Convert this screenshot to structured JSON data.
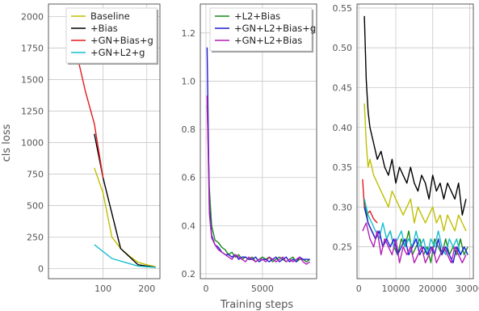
{
  "figure": {
    "xlabel": "Training steps",
    "ylabel": "cls loss"
  },
  "chart_data": [
    {
      "type": "line",
      "xlim": [
        -25,
        230
      ],
      "ylim": [
        -80,
        2100
      ],
      "xticks": [
        {
          "v": 100,
          "label": "100"
        },
        {
          "v": 200,
          "label": "200"
        }
      ],
      "yticks": [
        {
          "v": 0,
          "label": "0"
        },
        {
          "v": 250,
          "label": "250"
        },
        {
          "v": 500,
          "label": "500"
        },
        {
          "v": 750,
          "label": "750"
        },
        {
          "v": 1000,
          "label": "1000"
        },
        {
          "v": 1250,
          "label": "1250"
        },
        {
          "v": 1500,
          "label": "1500"
        },
        {
          "v": 1750,
          "label": "1750"
        },
        {
          "v": 2000,
          "label": "2000"
        }
      ],
      "legend": "top-right",
      "grid": true,
      "series": [
        {
          "name": "Baseline",
          "color": "#bfbf00",
          "x": [
            80,
            100,
            120,
            140,
            160,
            180,
            200,
            220
          ],
          "y": [
            800,
            600,
            250,
            160,
            100,
            50,
            30,
            15
          ]
        },
        {
          "name": "+Bias",
          "color": "#000000",
          "x": [
            80,
            100,
            140,
            180,
            220
          ],
          "y": [
            1070,
            720,
            160,
            30,
            10
          ]
        },
        {
          "name": "+GN+Bias+g",
          "color": "#e31a1c",
          "x": [
            20,
            40,
            60,
            80,
            100
          ],
          "y": [
            2020,
            1700,
            1400,
            1150,
            720
          ]
        },
        {
          "name": "+GN+L2+g",
          "color": "#17becf",
          "x": [
            80,
            120,
            160,
            180,
            220
          ],
          "y": [
            190,
            80,
            40,
            20,
            10
          ]
        }
      ]
    },
    {
      "type": "line",
      "xlim": [
        -500,
        9800
      ],
      "ylim": [
        0.18,
        1.32
      ],
      "xticks": [
        {
          "v": 0,
          "label": "0"
        },
        {
          "v": 5000,
          "label": "5000"
        }
      ],
      "yticks": [
        {
          "v": 0.2,
          "label": "0.2"
        },
        {
          "v": 0.4,
          "label": "0.4"
        },
        {
          "v": 0.6,
          "label": "0.6"
        },
        {
          "v": 0.8,
          "label": "0.8"
        },
        {
          "v": 1.0,
          "label": "1.0"
        },
        {
          "v": 1.2,
          "label": "1.2"
        }
      ],
      "legend": "top-right",
      "grid": true,
      "series": [
        {
          "name": "+L2+Bias",
          "color": "#1a8c1a",
          "x": [
            100,
            300,
            500,
            800,
            1100,
            1400,
            1700,
            2000,
            2300,
            2600,
            2900,
            3200,
            3500,
            3800,
            4100,
            4400,
            4700,
            5000,
            5300,
            5600,
            5900,
            6200,
            6500,
            6800,
            7100,
            7400,
            7700,
            8000,
            8300,
            8600,
            8900,
            9200
          ],
          "y": [
            0.9,
            0.55,
            0.4,
            0.34,
            0.33,
            0.31,
            0.3,
            0.28,
            0.29,
            0.27,
            0.28,
            0.26,
            0.27,
            0.26,
            0.27,
            0.25,
            0.26,
            0.27,
            0.26,
            0.27,
            0.25,
            0.26,
            0.27,
            0.26,
            0.25,
            0.26,
            0.27,
            0.25,
            0.26,
            0.26,
            0.25,
            0.26
          ]
        },
        {
          "name": "+GN+L2+Bias+g",
          "color": "#1f1fd6",
          "x": [
            100,
            300,
            500,
            800,
            1100,
            1400,
            1700,
            2000,
            2300,
            2600,
            2900,
            3200,
            3500,
            3800,
            4100,
            4400,
            4700,
            5000,
            5300,
            5600,
            5900,
            6200,
            6500,
            6800,
            7100,
            7400,
            7700,
            8000,
            8300,
            8600,
            8900,
            9200
          ],
          "y": [
            1.14,
            0.48,
            0.36,
            0.32,
            0.31,
            0.29,
            0.28,
            0.28,
            0.27,
            0.28,
            0.26,
            0.27,
            0.27,
            0.26,
            0.26,
            0.27,
            0.25,
            0.26,
            0.26,
            0.25,
            0.26,
            0.27,
            0.25,
            0.26,
            0.27,
            0.25,
            0.26,
            0.25,
            0.27,
            0.26,
            0.26,
            0.26
          ]
        },
        {
          "name": "+GN+L2+Bias",
          "color": "#b41fb4",
          "x": [
            100,
            300,
            500,
            800,
            1100,
            1400,
            1700,
            2000,
            2300,
            2600,
            2900,
            3200,
            3500,
            3800,
            4100,
            4400,
            4700,
            5000,
            5300,
            5600,
            5900,
            6200,
            6500,
            6800,
            7100,
            7400,
            7700,
            8000,
            8300,
            8600,
            8900,
            9200
          ],
          "y": [
            0.94,
            0.45,
            0.35,
            0.32,
            0.3,
            0.29,
            0.28,
            0.27,
            0.26,
            0.28,
            0.27,
            0.26,
            0.25,
            0.27,
            0.26,
            0.25,
            0.26,
            0.26,
            0.25,
            0.27,
            0.26,
            0.25,
            0.26,
            0.27,
            0.25,
            0.26,
            0.25,
            0.26,
            0.27,
            0.25,
            0.24,
            0.25
          ]
        }
      ]
    },
    {
      "type": "line",
      "xlim": [
        -500,
        31000
      ],
      "ylim": [
        0.21,
        0.555
      ],
      "xticks": [
        {
          "v": 0,
          "label": "0"
        },
        {
          "v": 10000,
          "label": "10000"
        },
        {
          "v": 20000,
          "label": "20000"
        },
        {
          "v": 30000,
          "label": "30000"
        }
      ],
      "yticks": [
        {
          "v": 0.25,
          "label": "0.25"
        },
        {
          "v": 0.3,
          "label": "0.30"
        },
        {
          "v": 0.35,
          "label": "0.35"
        },
        {
          "v": 0.4,
          "label": "0.40"
        },
        {
          "v": 0.45,
          "label": "0.45"
        },
        {
          "v": 0.5,
          "label": "0.50"
        },
        {
          "v": 0.55,
          "label": "0.55"
        }
      ],
      "grid": true,
      "series": [
        {
          "color": "#000000",
          "x": [
            1500,
            2000,
            2500,
            3000,
            4000,
            5000,
            6000,
            7000,
            8000,
            9000,
            10000,
            11000,
            12000,
            13000,
            14000,
            15000,
            16000,
            17000,
            18000,
            19000,
            20000,
            21000,
            22000,
            23000,
            24000,
            25000,
            26000,
            27000,
            28000,
            29000
          ],
          "y": [
            0.54,
            0.46,
            0.42,
            0.4,
            0.38,
            0.36,
            0.37,
            0.35,
            0.34,
            0.36,
            0.33,
            0.35,
            0.34,
            0.33,
            0.35,
            0.33,
            0.32,
            0.34,
            0.33,
            0.31,
            0.34,
            0.32,
            0.33,
            0.31,
            0.33,
            0.32,
            0.31,
            0.33,
            0.29,
            0.31
          ]
        },
        {
          "color": "#bfbf00",
          "x": [
            1500,
            2000,
            2500,
            3000,
            4000,
            5000,
            6000,
            7000,
            8000,
            9000,
            10000,
            11000,
            12000,
            13000,
            14000,
            15000,
            16000,
            17000,
            18000,
            19000,
            20000,
            21000,
            22000,
            23000,
            24000,
            25000,
            26000,
            27000,
            28000,
            29000
          ],
          "y": [
            0.43,
            0.38,
            0.35,
            0.36,
            0.34,
            0.33,
            0.32,
            0.31,
            0.3,
            0.32,
            0.31,
            0.3,
            0.29,
            0.3,
            0.31,
            0.28,
            0.3,
            0.29,
            0.28,
            0.29,
            0.3,
            0.28,
            0.29,
            0.27,
            0.29,
            0.28,
            0.27,
            0.29,
            0.28,
            0.27
          ]
        },
        {
          "color": "#e31a1c",
          "x": [
            1000,
            1500,
            2000,
            3000,
            4000,
            5000
          ],
          "y": [
            0.335,
            0.3,
            0.29,
            0.295,
            0.285,
            0.28
          ]
        },
        {
          "color": "#1a8c1a",
          "x": [
            1500,
            2500,
            3500,
            4500,
            5500,
            6500,
            7500,
            8500,
            9500,
            10500,
            11500,
            12500,
            13500,
            14500,
            15500,
            16500,
            17500,
            18500,
            19500,
            20500,
            21500,
            22500,
            23500,
            24500,
            25500,
            26500,
            27500,
            28500,
            29500
          ],
          "y": [
            0.31,
            0.28,
            0.27,
            0.26,
            0.27,
            0.25,
            0.26,
            0.27,
            0.25,
            0.24,
            0.26,
            0.25,
            0.27,
            0.24,
            0.25,
            0.26,
            0.24,
            0.25,
            0.23,
            0.26,
            0.25,
            0.24,
            0.26,
            0.24,
            0.25,
            0.24,
            0.26,
            0.24,
            0.25
          ]
        },
        {
          "color": "#17becf",
          "x": [
            1500,
            2500,
            3500,
            4500,
            5500,
            6500,
            7500,
            8500,
            9500,
            10500,
            11500,
            12500,
            13500,
            14500,
            15500,
            16500,
            17500,
            18500,
            19500,
            20500,
            21500,
            22500,
            23500,
            24500,
            25500,
            26500,
            27500,
            28500,
            29500
          ],
          "y": [
            0.31,
            0.29,
            0.28,
            0.27,
            0.26,
            0.28,
            0.26,
            0.27,
            0.25,
            0.26,
            0.27,
            0.25,
            0.26,
            0.25,
            0.27,
            0.25,
            0.26,
            0.24,
            0.26,
            0.25,
            0.27,
            0.25,
            0.24,
            0.26,
            0.25,
            0.26,
            0.24,
            0.25,
            0.24
          ]
        },
        {
          "color": "#1f1fd6",
          "x": [
            1500,
            2500,
            3500,
            4500,
            5500,
            6500,
            7500,
            8500,
            9500,
            10500,
            11500,
            12500,
            13500,
            14500,
            15500,
            16500,
            17500,
            18500,
            19500,
            20500,
            21500,
            22500,
            23500,
            24500,
            25500,
            26500,
            27500,
            28500,
            29500
          ],
          "y": [
            0.3,
            0.28,
            0.27,
            0.26,
            0.27,
            0.25,
            0.26,
            0.25,
            0.26,
            0.24,
            0.25,
            0.26,
            0.24,
            0.25,
            0.26,
            0.24,
            0.25,
            0.24,
            0.25,
            0.24,
            0.26,
            0.24,
            0.25,
            0.24,
            0.23,
            0.25,
            0.24,
            0.25,
            0.24
          ]
        },
        {
          "color": "#b41fb4",
          "x": [
            1000,
            2000,
            3000,
            4000,
            5000,
            6000,
            7000,
            8000,
            9000,
            10000,
            11000,
            12000,
            13000,
            14000,
            15000,
            16000,
            17000,
            18000,
            19000,
            20000,
            21000,
            22000,
            23000,
            24000,
            25000,
            26000,
            27000,
            28000,
            29000
          ],
          "y": [
            0.27,
            0.28,
            0.26,
            0.25,
            0.27,
            0.24,
            0.26,
            0.25,
            0.24,
            0.26,
            0.23,
            0.25,
            0.24,
            0.25,
            0.23,
            0.24,
            0.25,
            0.23,
            0.24,
            0.25,
            0.23,
            0.24,
            0.25,
            0.24,
            0.23,
            0.25,
            0.24,
            0.23,
            0.24
          ]
        }
      ]
    }
  ]
}
